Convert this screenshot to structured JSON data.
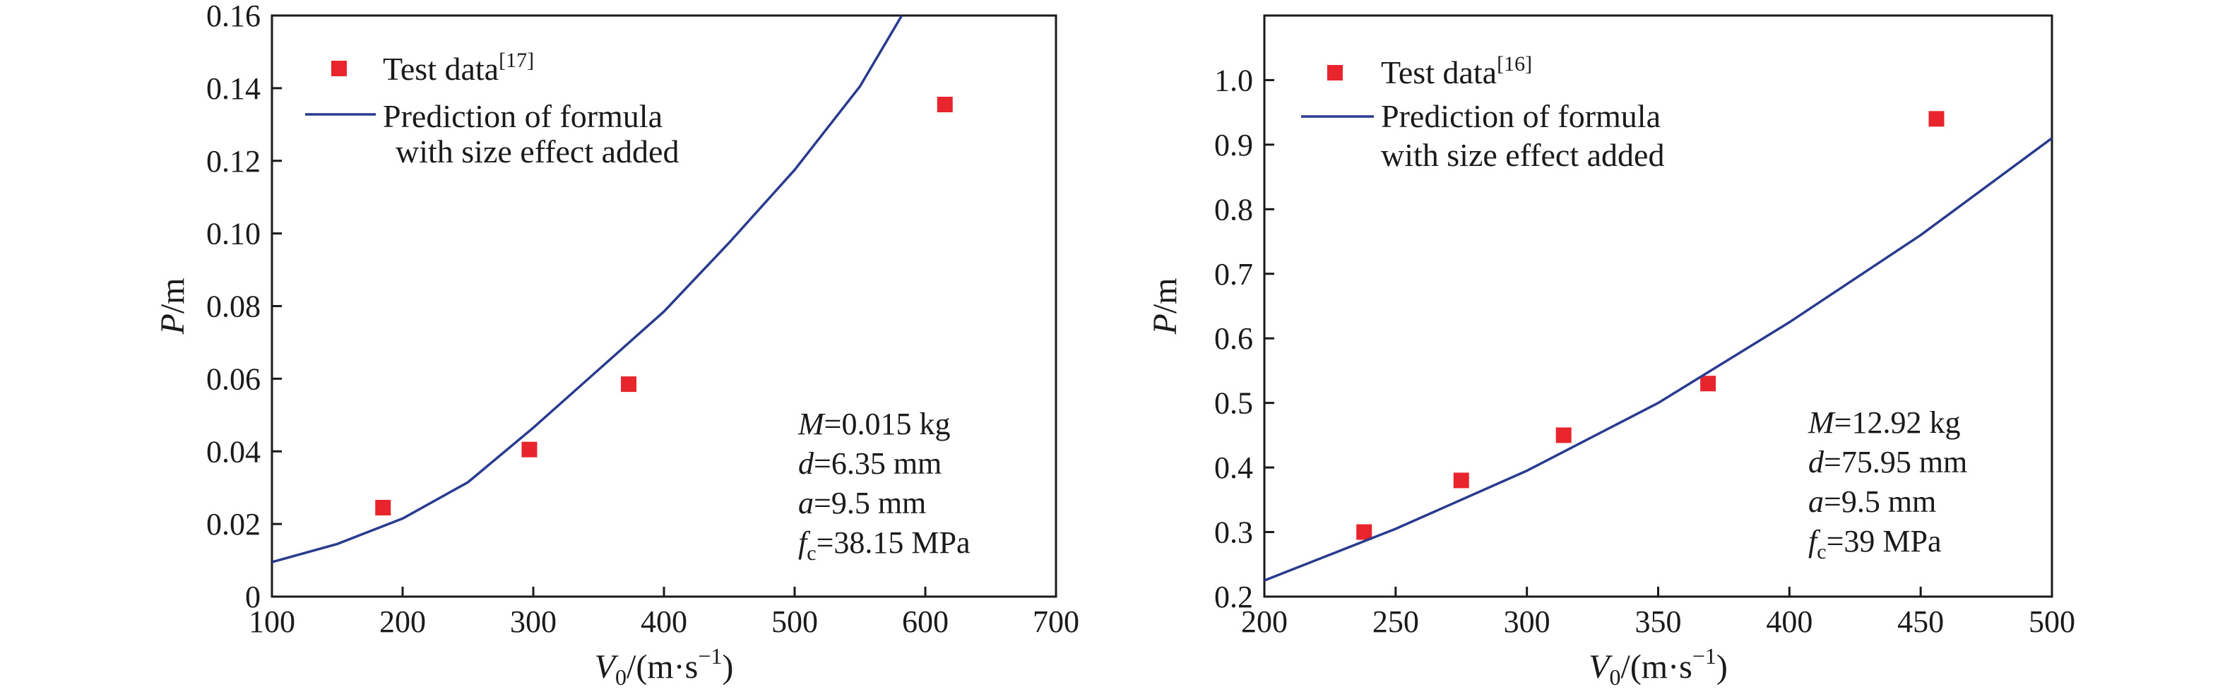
{
  "colors": {
    "test": "#e8242c",
    "curve": "#283b8f",
    "axis": "#1a1a1a"
  },
  "chart_data": [
    {
      "type": "scatter",
      "xlabel": {
        "main": "V",
        "sub": "0",
        "rest": "/(m·s",
        "sup": "−1",
        "end": ")"
      },
      "ylabel": {
        "main": "P",
        "rest": "/m"
      },
      "xlim": [
        100,
        700
      ],
      "ylim": [
        0,
        0.16
      ],
      "xticks": [
        "100",
        "200",
        "300",
        "400",
        "500",
        "600",
        "700"
      ],
      "yticks": [
        "0",
        "0.02",
        "0.04",
        "0.06",
        "0.08",
        "0.10",
        "0.12",
        "0.14",
        "0.16"
      ],
      "legend_placement": "top-left",
      "series": [
        {
          "name": {
            "text": "Test data",
            "ref": "[17]"
          },
          "kind": "points",
          "x": [
            185,
            297,
            373,
            615
          ],
          "y": [
            0.0245,
            0.0405,
            0.0585,
            0.1355
          ]
        },
        {
          "name": {
            "line1": "Prediction of formula",
            "line2": "with size effect added"
          },
          "kind": "line",
          "x": [
            100,
            150,
            200,
            250,
            300,
            350,
            400,
            450,
            500,
            550,
            582
          ],
          "y": [
            0.0095,
            0.0145,
            0.0215,
            0.0315,
            0.0465,
            0.0625,
            0.0785,
            0.0975,
            0.1175,
            0.1405,
            0.16
          ]
        }
      ],
      "params": [
        {
          "var": "M",
          "rest": "=0.015 kg"
        },
        {
          "var": "d",
          "rest": "=6.35 mm"
        },
        {
          "var": "a",
          "rest": "=9.5 mm"
        },
        {
          "var": "f",
          "sub": "c",
          "rest": "=38.15 MPa"
        }
      ]
    },
    {
      "type": "scatter",
      "xlabel": {
        "main": "V",
        "sub": "0",
        "rest": "/(m·s",
        "sup": "−1",
        "end": ")"
      },
      "ylabel": {
        "main": "P",
        "rest": "/m"
      },
      "xlim": [
        200,
        500
      ],
      "ylim": [
        0.2,
        1.1
      ],
      "xticks": [
        "200",
        "250",
        "300",
        "350",
        "400",
        "450",
        "500"
      ],
      "yticks": [
        "0.2",
        "0.3",
        "0.4",
        "0.5",
        "0.6",
        "0.7",
        "0.8",
        "0.9",
        "1.0"
      ],
      "legend_placement": "top-left",
      "series": [
        {
          "name": {
            "text": "Test data",
            "ref": "[16]"
          },
          "kind": "points",
          "x": [
            238,
            275,
            314,
            369,
            456
          ],
          "y": [
            0.3,
            0.38,
            0.45,
            0.53,
            0.94
          ]
        },
        {
          "name": {
            "line1": "Prediction of formula",
            "line2": "with size effect added"
          },
          "kind": "line",
          "x": [
            200,
            250,
            300,
            350,
            400,
            450,
            500
          ],
          "y": [
            0.225,
            0.305,
            0.395,
            0.5,
            0.625,
            0.76,
            0.91
          ]
        }
      ],
      "params": [
        {
          "var": "M",
          "rest": "=12.92 kg"
        },
        {
          "var": "d",
          "rest": "=75.95 mm"
        },
        {
          "var": "a",
          "rest": "=9.5 mm"
        },
        {
          "var": "f",
          "sub": "c",
          "rest": "=39 MPa"
        }
      ]
    }
  ]
}
